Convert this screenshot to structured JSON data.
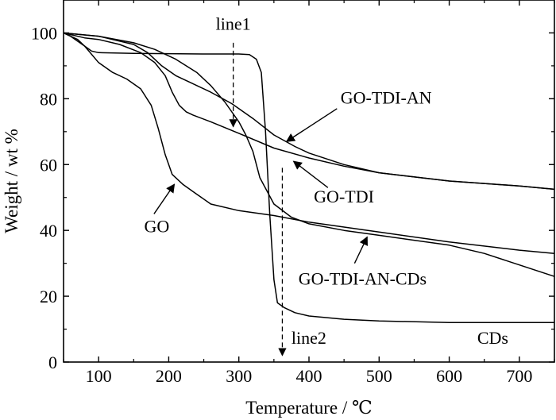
{
  "chart_data": {
    "type": "line",
    "title": "",
    "xlabel": "Temperature / ℃",
    "ylabel": "Weight / wt %",
    "xlim": [
      50,
      750
    ],
    "ylim": [
      0,
      110
    ],
    "xticks": [
      100,
      200,
      300,
      400,
      500,
      600,
      700
    ],
    "yticks": [
      0,
      20,
      40,
      60,
      80,
      100
    ],
    "grid": false,
    "legend": "none",
    "series": [
      {
        "name": "GO",
        "x": [
          50,
          60,
          80,
          100,
          120,
          140,
          160,
          175,
          185,
          195,
          205,
          220,
          240,
          260,
          300,
          350,
          400,
          500,
          600,
          700,
          750
        ],
        "y": [
          100,
          99,
          96,
          91,
          88,
          86,
          83,
          78,
          71,
          63,
          57,
          54,
          51,
          48,
          46,
          44.5,
          42.5,
          39.5,
          36.5,
          34,
          33
        ]
      },
      {
        "name": "GO-TDI",
        "x": [
          50,
          80,
          100,
          130,
          160,
          180,
          195,
          205,
          215,
          225,
          235,
          260,
          300,
          350,
          400,
          450,
          500,
          600,
          700,
          750
        ],
        "y": [
          100,
          98.5,
          98,
          96.5,
          94,
          91,
          87,
          82,
          78,
          76,
          75,
          73,
          69.5,
          65,
          62,
          59.5,
          57.5,
          55,
          53.5,
          52.5
        ]
      },
      {
        "name": "GO-TDI-AN",
        "x": [
          50,
          100,
          150,
          170,
          190,
          210,
          230,
          260,
          290,
          320,
          350,
          380,
          400,
          450,
          500,
          600,
          700,
          750
        ],
        "y": [
          100,
          99,
          96.5,
          94,
          90,
          87,
          85,
          82,
          78.5,
          74,
          69,
          65.5,
          63.5,
          60,
          57.5,
          55,
          53.5,
          52.5
        ]
      },
      {
        "name": "GO-TDI-AN-CDs",
        "x": [
          50,
          100,
          150,
          180,
          210,
          240,
          260,
          280,
          300,
          310,
          320,
          330,
          350,
          375,
          400,
          450,
          500,
          600,
          650,
          700,
          750
        ],
        "y": [
          100,
          99,
          97,
          95,
          92,
          88,
          84,
          79,
          73,
          69,
          64,
          56,
          48,
          44,
          42,
          40,
          38.5,
          35.5,
          33,
          29.5,
          26
        ]
      },
      {
        "name": "CDs",
        "x": [
          50,
          60,
          70,
          80,
          90,
          100,
          150,
          200,
          250,
          300,
          315,
          325,
          332,
          338,
          344,
          350,
          355,
          365,
          380,
          400,
          450,
          500,
          600,
          700,
          750
        ],
        "y": [
          100,
          99,
          98,
          96,
          94.5,
          94,
          93.8,
          93.7,
          93.6,
          93.6,
          93.4,
          92,
          88,
          70,
          45,
          25,
          18,
          16.5,
          15,
          14,
          13,
          12.5,
          12,
          12,
          12
        ]
      }
    ],
    "reference_lines": [
      {
        "name": "line1",
        "x": 292,
        "y_from": 97,
        "y_to": 71.5
      },
      {
        "name": "line2",
        "x": 362,
        "y_from": 59,
        "y_to": 2
      }
    ],
    "annotations": [
      {
        "text": "line1",
        "x": 292,
        "y": 101,
        "arrow_to": null
      },
      {
        "text": "line2",
        "x": 375,
        "y": 5.5,
        "arrow_to": null
      },
      {
        "text": "GO-TDI-AN",
        "x": 445,
        "y": 78.5,
        "arrow_from": [
          440,
          77
        ],
        "arrow_to": [
          368,
          67
        ]
      },
      {
        "text": "GO-TDI",
        "x": 407,
        "y": 48.5,
        "arrow_from": [
          427,
          53
        ],
        "arrow_to": [
          378,
          61
        ]
      },
      {
        "text": "GO",
        "x": 165,
        "y": 39.5,
        "arrow_from": [
          179,
          45
        ],
        "arrow_to": [
          208,
          54
        ]
      },
      {
        "text": "GO-TDI-AN-CDs",
        "x": 385,
        "y": 23.5,
        "arrow_from": [
          465,
          30
        ],
        "arrow_to": [
          483,
          38
        ]
      },
      {
        "text": "CDs",
        "x": 640,
        "y": 5.5,
        "arrow_to": null
      }
    ]
  }
}
